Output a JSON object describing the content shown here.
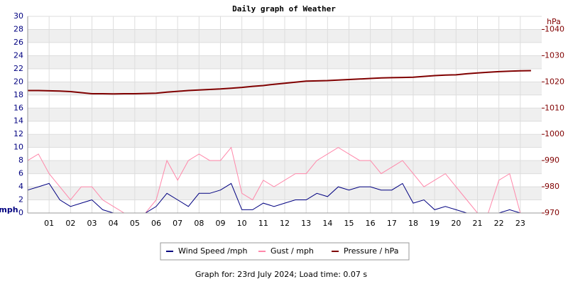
{
  "chart_data": {
    "type": "line",
    "title": "Daily graph of Weather",
    "y_label": "mph",
    "y2_label": "hPa",
    "footer": "Graph for: 23rd July 2024; Load time: 0.07 s",
    "x": [
      0,
      0.5,
      1,
      1.5,
      2,
      2.5,
      3,
      3.5,
      4,
      4.5,
      5,
      5.5,
      6,
      6.5,
      7,
      7.5,
      8,
      8.5,
      9,
      9.5,
      10,
      10.5,
      11,
      11.5,
      12,
      12.5,
      13,
      13.5,
      14,
      14.5,
      15,
      15.5,
      16,
      16.5,
      17,
      17.5,
      18,
      18.5,
      19,
      19.5,
      20,
      20.5,
      21,
      21.5,
      22,
      22.5,
      23,
      23.5
    ],
    "xlim": [
      0,
      24
    ],
    "xticks": [
      {
        "value": 1,
        "label": "01"
      },
      {
        "value": 2,
        "label": "02"
      },
      {
        "value": 3,
        "label": "03"
      },
      {
        "value": 4,
        "label": "04"
      },
      {
        "value": 5,
        "label": "05"
      },
      {
        "value": 6,
        "label": "06"
      },
      {
        "value": 7,
        "label": "07"
      },
      {
        "value": 8,
        "label": "08"
      },
      {
        "value": 9,
        "label": "09"
      },
      {
        "value": 10,
        "label": "10"
      },
      {
        "value": 11,
        "label": "11"
      },
      {
        "value": 12,
        "label": "12"
      },
      {
        "value": 13,
        "label": "13"
      },
      {
        "value": 14,
        "label": "14"
      },
      {
        "value": 15,
        "label": "15"
      },
      {
        "value": 16,
        "label": "16"
      },
      {
        "value": 17,
        "label": "17"
      },
      {
        "value": 18,
        "label": "18"
      },
      {
        "value": 19,
        "label": "19"
      },
      {
        "value": 20,
        "label": "20"
      },
      {
        "value": 21,
        "label": "21"
      },
      {
        "value": 22,
        "label": "22"
      },
      {
        "value": 23,
        "label": "23"
      }
    ],
    "ylim": [
      0,
      30
    ],
    "yticks": [
      0,
      2,
      4,
      6,
      8,
      10,
      12,
      14,
      16,
      18,
      20,
      22,
      24,
      26,
      28,
      30
    ],
    "y2lim": [
      970,
      1045
    ],
    "y2ticks": [
      970,
      980,
      990,
      1000,
      1010,
      1020,
      1030,
      1040
    ],
    "grid": true,
    "series": [
      {
        "name": "Wind Speed /mph",
        "color": "#000080",
        "values": [
          3.5,
          4,
          4.5,
          2,
          1,
          1.5,
          2,
          0.5,
          0,
          0,
          0,
          0,
          1,
          3,
          2,
          1,
          3,
          3,
          3.5,
          4.5,
          0.5,
          0.5,
          1.5,
          1,
          1.5,
          2,
          2,
          3,
          2.5,
          4,
          3.5,
          4,
          4,
          3.5,
          3.5,
          4.5,
          1.5,
          2,
          0.5,
          1,
          0.5,
          0,
          0,
          0,
          0,
          0.5,
          0,
          0
        ]
      },
      {
        "name": "Gust / mph",
        "color": "#ff88aa",
        "values": [
          8,
          9,
          6,
          4,
          2,
          4,
          4,
          2,
          1,
          0,
          0,
          0,
          2,
          8,
          5,
          8,
          9,
          8,
          8,
          10,
          3,
          2,
          5,
          4,
          5,
          6,
          6,
          8,
          9,
          10,
          9,
          8,
          8,
          6,
          7,
          8,
          6,
          4,
          5,
          6,
          4,
          2,
          0,
          0,
          5,
          6,
          0,
          0
        ]
      },
      {
        "name": "Pressure / hPa",
        "color": "#800000",
        "axis": "y2",
        "values": [
          1016.7,
          1016.7,
          1016.6,
          1016.5,
          1016.3,
          1015.9,
          1015.5,
          1015.5,
          1015.4,
          1015.5,
          1015.5,
          1015.6,
          1015.7,
          1016.1,
          1016.4,
          1016.7,
          1016.9,
          1017.1,
          1017.3,
          1017.6,
          1017.9,
          1018.3,
          1018.6,
          1019.1,
          1019.5,
          1019.9,
          1020.3,
          1020.4,
          1020.5,
          1020.7,
          1020.9,
          1021.1,
          1021.3,
          1021.5,
          1021.6,
          1021.7,
          1021.8,
          1022.1,
          1022.4,
          1022.6,
          1022.7,
          1023.1,
          1023.4,
          1023.7,
          1023.9,
          1024.1,
          1024.2,
          1024.3
        ]
      }
    ]
  }
}
